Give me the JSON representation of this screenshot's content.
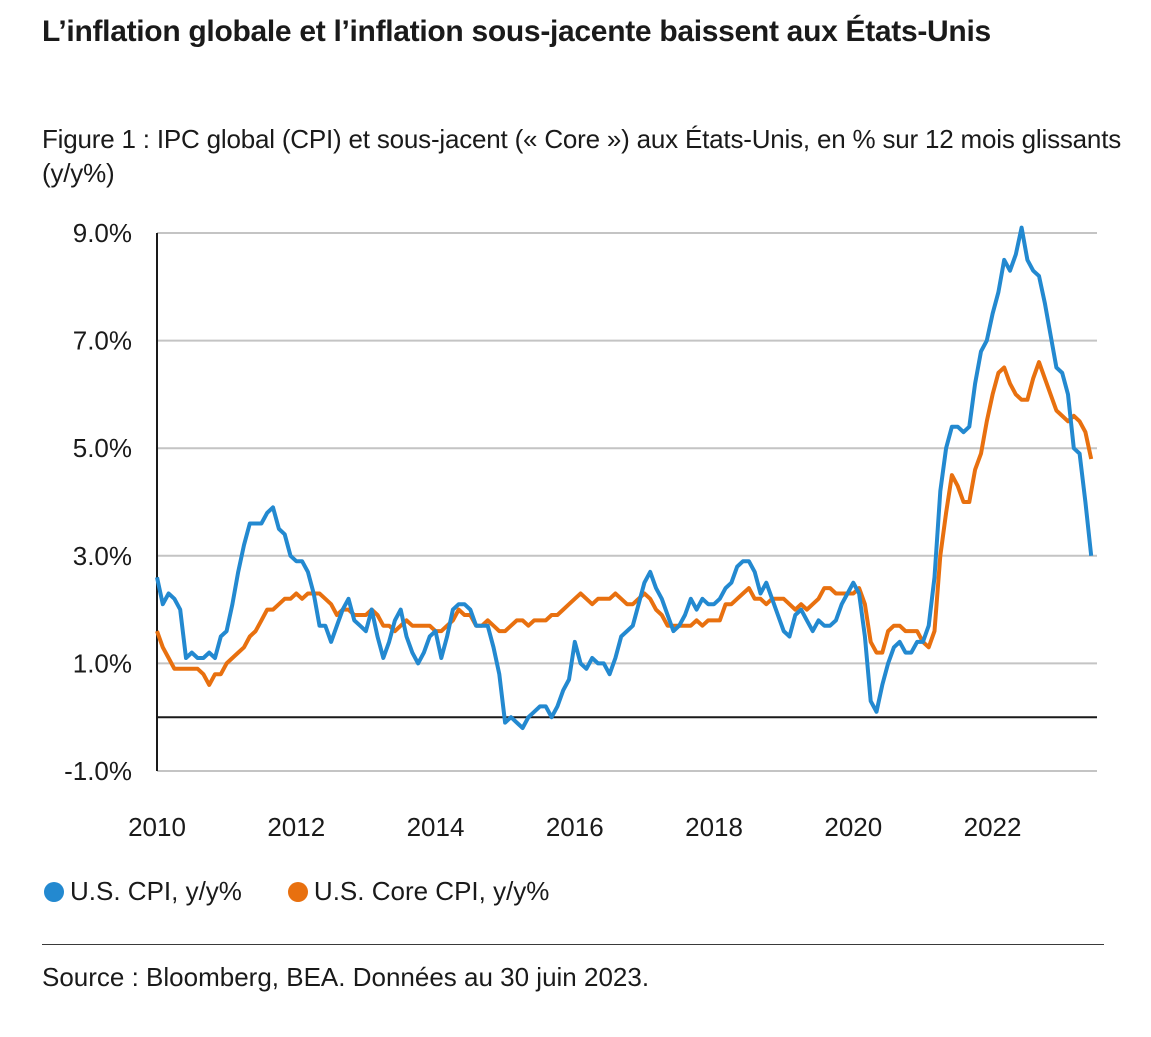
{
  "header": {
    "title": "L’inflation globale et l’inflation sous-jacente baissent aux États-Unis",
    "subtitle": "Figure 1 : IPC global (CPI) et sous-jacent (« Core ») aux États-Unis, en % sur 12 mois glissants (y/y%)"
  },
  "footer": {
    "source": "Source : Bloomberg, BEA. Données au 30 juin 2023."
  },
  "chart_data": {
    "type": "line",
    "title": "Figure 1 : IPC global (CPI) et sous-jacent (« Core ») aux États-Unis, en % sur 12 mois glissants (y/y%)",
    "xlabel": "",
    "ylabel": "",
    "x_start": "2010-01",
    "x_end": "2023-06",
    "frequency": "monthly",
    "x_ticks": [
      "2010",
      "2012",
      "2014",
      "2016",
      "2018",
      "2020",
      "2022"
    ],
    "x_tick_years": [
      2010,
      2012,
      2014,
      2016,
      2018,
      2020,
      2022
    ],
    "y_ticks": [
      "-1.0%",
      "1.0%",
      "3.0%",
      "5.0%",
      "7.0%",
      "9.0%"
    ],
    "y_tick_values": [
      -1,
      1,
      3,
      5,
      7,
      9
    ],
    "ylim": [
      -1,
      9
    ],
    "xlim": [
      2010.0,
      2023.5
    ],
    "grid": "horizontal",
    "zero_line": true,
    "legend_position": "bottom-left",
    "series": [
      {
        "name": "U.S. CPI, y/y%",
        "color": "#2389d0",
        "values": [
          2.6,
          2.1,
          2.3,
          2.2,
          2.0,
          1.1,
          1.2,
          1.1,
          1.1,
          1.2,
          1.1,
          1.5,
          1.6,
          2.1,
          2.7,
          3.2,
          3.6,
          3.6,
          3.6,
          3.8,
          3.9,
          3.5,
          3.4,
          3.0,
          2.9,
          2.9,
          2.7,
          2.3,
          1.7,
          1.7,
          1.4,
          1.7,
          2.0,
          2.2,
          1.8,
          1.7,
          1.6,
          2.0,
          1.5,
          1.1,
          1.4,
          1.8,
          2.0,
          1.5,
          1.2,
          1.0,
          1.2,
          1.5,
          1.6,
          1.1,
          1.5,
          2.0,
          2.1,
          2.1,
          2.0,
          1.7,
          1.7,
          1.7,
          1.3,
          0.8,
          -0.1,
          0.0,
          -0.1,
          -0.2,
          0.0,
          0.1,
          0.2,
          0.2,
          0.0,
          0.2,
          0.5,
          0.7,
          1.4,
          1.0,
          0.9,
          1.1,
          1.0,
          1.0,
          0.8,
          1.1,
          1.5,
          1.6,
          1.7,
          2.1,
          2.5,
          2.7,
          2.4,
          2.2,
          1.9,
          1.6,
          1.7,
          1.9,
          2.2,
          2.0,
          2.2,
          2.1,
          2.1,
          2.2,
          2.4,
          2.5,
          2.8,
          2.9,
          2.9,
          2.7,
          2.3,
          2.5,
          2.2,
          1.9,
          1.6,
          1.5,
          1.9,
          2.0,
          1.8,
          1.6,
          1.8,
          1.7,
          1.7,
          1.8,
          2.1,
          2.3,
          2.5,
          2.3,
          1.5,
          0.3,
          0.1,
          0.6,
          1.0,
          1.3,
          1.4,
          1.2,
          1.2,
          1.4,
          1.4,
          1.7,
          2.6,
          4.2,
          5.0,
          5.4,
          5.4,
          5.3,
          5.4,
          6.2,
          6.8,
          7.0,
          7.5,
          7.9,
          8.5,
          8.3,
          8.6,
          9.1,
          8.5,
          8.3,
          8.2,
          7.7,
          7.1,
          6.5,
          6.4,
          6.0,
          5.0,
          4.9,
          4.0,
          3.0
        ]
      },
      {
        "name": "U.S. Core CPI, y/y%",
        "color": "#e8700f",
        "values": [
          1.6,
          1.3,
          1.1,
          0.9,
          0.9,
          0.9,
          0.9,
          0.9,
          0.8,
          0.6,
          0.8,
          0.8,
          1.0,
          1.1,
          1.2,
          1.3,
          1.5,
          1.6,
          1.8,
          2.0,
          2.0,
          2.1,
          2.2,
          2.2,
          2.3,
          2.2,
          2.3,
          2.3,
          2.3,
          2.2,
          2.1,
          1.9,
          2.0,
          2.0,
          1.9,
          1.9,
          1.9,
          2.0,
          1.9,
          1.7,
          1.7,
          1.6,
          1.7,
          1.8,
          1.7,
          1.7,
          1.7,
          1.7,
          1.6,
          1.6,
          1.7,
          1.8,
          2.0,
          1.9,
          1.9,
          1.7,
          1.7,
          1.8,
          1.7,
          1.6,
          1.6,
          1.7,
          1.8,
          1.8,
          1.7,
          1.8,
          1.8,
          1.8,
          1.9,
          1.9,
          2.0,
          2.1,
          2.2,
          2.3,
          2.2,
          2.1,
          2.2,
          2.2,
          2.2,
          2.3,
          2.2,
          2.1,
          2.1,
          2.2,
          2.3,
          2.2,
          2.0,
          1.9,
          1.7,
          1.7,
          1.7,
          1.7,
          1.7,
          1.8,
          1.7,
          1.8,
          1.8,
          1.8,
          2.1,
          2.1,
          2.2,
          2.3,
          2.4,
          2.2,
          2.2,
          2.1,
          2.2,
          2.2,
          2.2,
          2.1,
          2.0,
          2.1,
          2.0,
          2.1,
          2.2,
          2.4,
          2.4,
          2.3,
          2.3,
          2.3,
          2.3,
          2.4,
          2.1,
          1.4,
          1.2,
          1.2,
          1.6,
          1.7,
          1.7,
          1.6,
          1.6,
          1.6,
          1.4,
          1.3,
          1.6,
          3.0,
          3.8,
          4.5,
          4.3,
          4.0,
          4.0,
          4.6,
          4.9,
          5.5,
          6.0,
          6.4,
          6.5,
          6.2,
          6.0,
          5.9,
          5.9,
          6.3,
          6.6,
          6.3,
          6.0,
          5.7,
          5.6,
          5.5,
          5.6,
          5.5,
          5.3,
          4.8
        ]
      }
    ]
  }
}
